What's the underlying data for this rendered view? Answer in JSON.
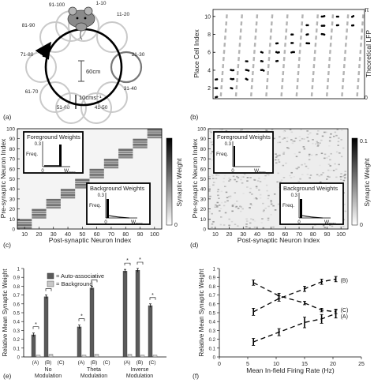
{
  "panel_labels": [
    "(a)",
    "(b)",
    "(c)",
    "(d)",
    "(e)",
    "(f)"
  ],
  "panel_a": {
    "sectors": [
      "1-10",
      "11-20",
      "21-30",
      "31-40",
      "41-50",
      "51-60",
      "61-70",
      "71-80",
      "81-90",
      "91-100"
    ],
    "diameter_label": "60cm",
    "speed_label": "10cms⁻¹"
  },
  "chart_data": [
    {
      "type": "scatter",
      "panel": "(b)",
      "ylabel": "Place Cell Index",
      "y2label": "Theoretical LFP",
      "yticks": [
        "2",
        "4",
        "6",
        "8",
        "10"
      ],
      "y2ticks": [
        "0",
        "π"
      ],
      "ylim": [
        1,
        10.6
      ],
      "cycles": 10,
      "spikes": [
        [
          1,
          2,
          3
        ],
        [
          2,
          3,
          4
        ],
        [
          3,
          4,
          5
        ],
        [
          4,
          5,
          6
        ],
        [
          5,
          6,
          7
        ],
        [
          6,
          7,
          8
        ],
        [
          7,
          8,
          9
        ],
        [
          8,
          9,
          10
        ],
        [
          9,
          10
        ],
        [
          10,
          9
        ]
      ]
    },
    {
      "type": "heatmap",
      "panel": "(c)",
      "xlabel": "Post-synaptic Neuron Index",
      "ylabel": "Pre-synaptic Neuron Index",
      "xticks": [
        "10",
        "20",
        "30",
        "40",
        "50",
        "60",
        "70",
        "80",
        "90",
        "100"
      ],
      "yticks": [
        "0",
        "10",
        "20",
        "30",
        "40",
        "50",
        "60",
        "70",
        "80",
        "90",
        "100"
      ],
      "colorbar_label": "Synaptic Weight",
      "colorbar_ticks": [
        "0"
      ],
      "insets": [
        {
          "title": "Foreground Weights",
          "ylabel": "Freq.",
          "ytick": "0.3",
          "xtick0": "0",
          "xtickmax": "W",
          "xtickmax_sub": "max"
        },
        {
          "title": "Background Weights",
          "ylabel": "Freq.",
          "ytick": "0.3",
          "xtick0": "0",
          "xtickmax": "W",
          "xtickmax_sub": "max"
        }
      ]
    },
    {
      "type": "heatmap",
      "panel": "(d)",
      "xlabel": "Post-synaptic Neuron Index",
      "ylabel": "Pre-synaptic Neuron Index",
      "xticks": [
        "10",
        "20",
        "30",
        "40",
        "50",
        "60",
        "70",
        "80",
        "90",
        "100"
      ],
      "yticks": [
        "0",
        "10",
        "20",
        "30",
        "40",
        "50",
        "60",
        "70",
        "80",
        "90",
        "100"
      ],
      "colorbar_label": "Synaptic Weight",
      "colorbar_ticks": [
        "0.1",
        "0"
      ],
      "insets": [
        {
          "title": "Foreground Weights",
          "ylabel": "Freq.",
          "ytick": "0.3",
          "xtick0": "0",
          "xtickmax": "W",
          "xtickmax_sub": "max"
        },
        {
          "title": "Background Weights",
          "ylabel": "Freq.",
          "ytick": "0.3",
          "xtick0": "0",
          "xtickmax": "W",
          "xtickmax_sub": "max"
        }
      ]
    },
    {
      "type": "bar",
      "panel": "(e)",
      "ylabel": "Relative Mean Synaptic Weight",
      "ylim": [
        0,
        1
      ],
      "yticks": [
        "0",
        "0.1",
        "0.2",
        "0.3",
        "0.4",
        "0.5",
        "0.6",
        "0.7",
        "0.8",
        "0.9",
        "1"
      ],
      "legend": [
        "= Auto-associative",
        "= Background"
      ],
      "groups": [
        {
          "title": [
            "No",
            "Modulation"
          ],
          "cats": [
            "(A)",
            "(B)",
            "(C)"
          ],
          "auto": [
            0.25,
            0.68,
            0
          ],
          "bg": [
            0.02,
            0.03,
            0
          ],
          "err": [
            0.02,
            0.02,
            0
          ]
        },
        {
          "title": [
            "Theta",
            "Modulation"
          ],
          "cats": [
            "(A)",
            "(B)",
            "(C)"
          ],
          "auto": [
            0.34,
            0.78,
            0
          ],
          "bg": [
            0.02,
            0.03,
            0
          ],
          "err": [
            0.02,
            0.02,
            0
          ]
        },
        {
          "title": [
            "Inverse",
            "Modulation"
          ],
          "cats": [
            "(A)",
            "(B)",
            "(C)"
          ],
          "auto": [
            0.97,
            0.98,
            0.58
          ],
          "bg": [
            0.03,
            0.02,
            0.02
          ],
          "err": [
            0.02,
            0.02,
            0.02
          ]
        }
      ],
      "significance": "*"
    },
    {
      "type": "line",
      "panel": "(f)",
      "xlabel": "Mean In-field Firing Rate (Hz)",
      "ylabel": "Relative Mean Synaptic Weight",
      "xlim": [
        0,
        25
      ],
      "ylim": [
        0,
        1
      ],
      "xticks": [
        "0",
        "5",
        "10",
        "15",
        "20",
        "25"
      ],
      "yticks": [
        "0",
        "0.1",
        "0.2",
        "0.3",
        "0.4",
        "0.5",
        "0.6",
        "0.7",
        "0.8",
        "0.9",
        "1"
      ],
      "series": [
        {
          "name": "(A)",
          "x": [
            6,
            10.5,
            15,
            18,
            20.5
          ],
          "y": [
            0.17,
            0.28,
            0.39,
            0.43,
            0.49
          ],
          "err": [
            0.04,
            0.04,
            0.06,
            0.05,
            0.05
          ]
        },
        {
          "name": "(B)",
          "x": [
            6,
            10.5,
            15,
            18,
            20.5
          ],
          "y": [
            0.51,
            0.66,
            0.77,
            0.85,
            0.88
          ],
          "err": [
            0.04,
            0.03,
            0.03,
            0.03,
            0.03
          ]
        },
        {
          "name": "(C)",
          "x": [
            6,
            10.5,
            15,
            18,
            20.5
          ],
          "y": [
            0.84,
            0.69,
            0.61,
            0.53,
            0.51
          ],
          "err": [
            0.03,
            0.03,
            0.02,
            0.02,
            0.02
          ]
        }
      ]
    }
  ]
}
